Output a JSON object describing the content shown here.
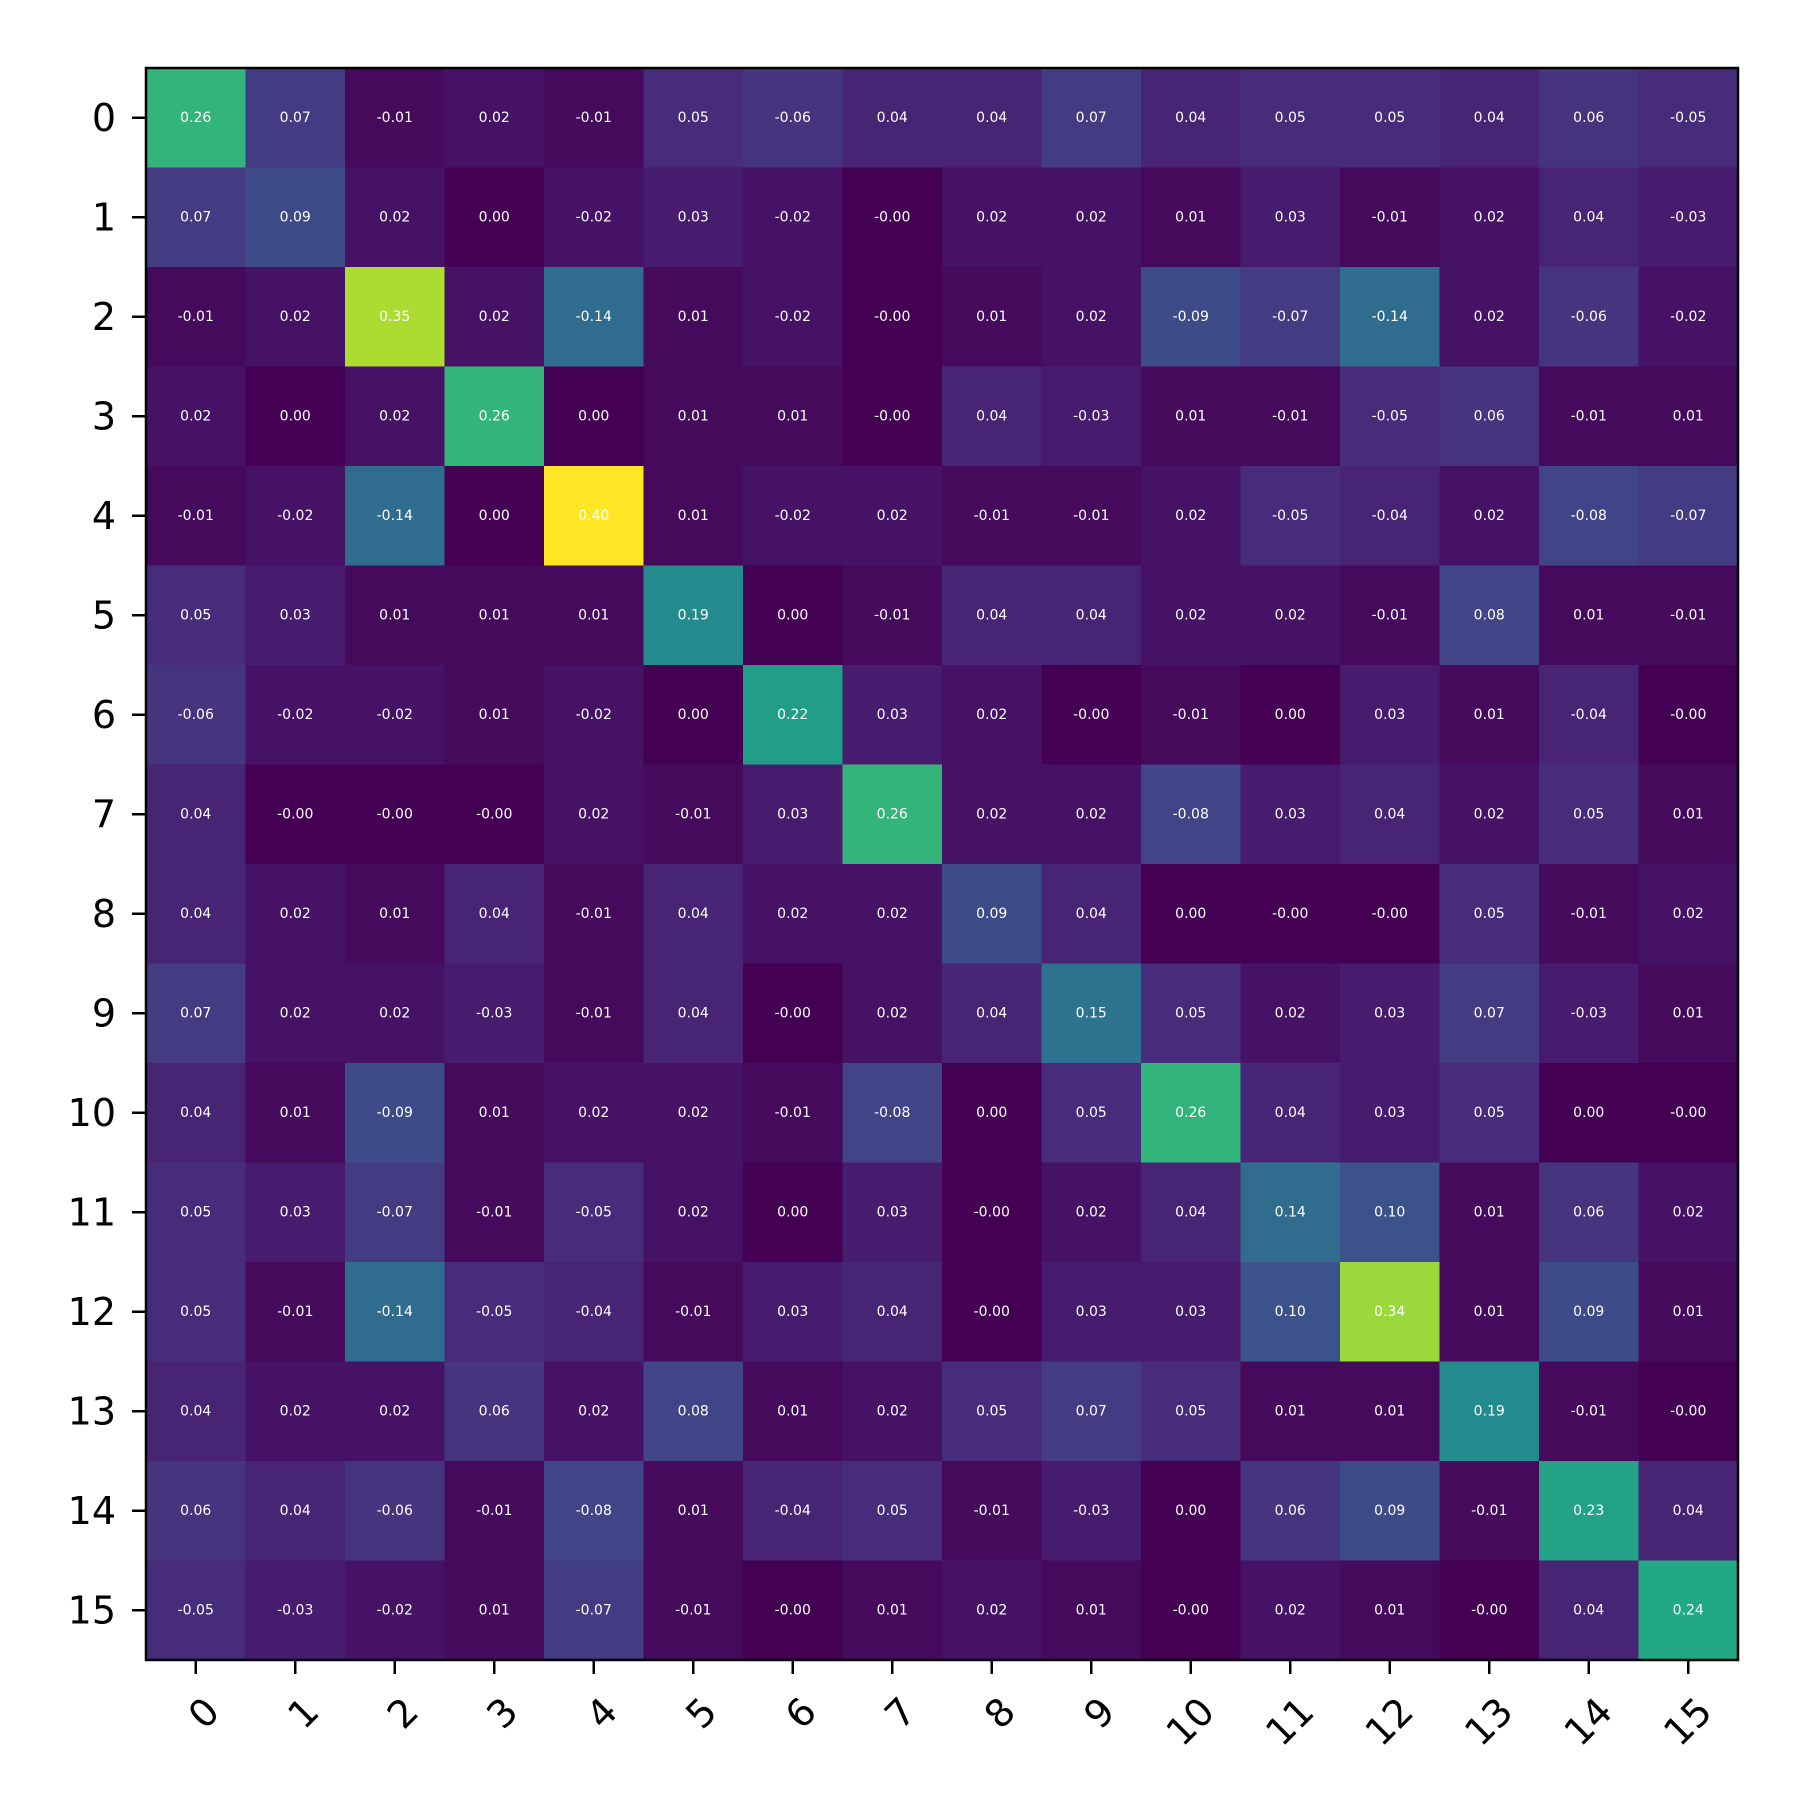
{
  "chart_data": {
    "type": "heatmap",
    "title": "",
    "xlabel": "",
    "ylabel": "",
    "colormap": "viridis",
    "value_format": "2-decimal",
    "x_categories": [
      "0",
      "1",
      "2",
      "3",
      "4",
      "5",
      "6",
      "7",
      "8",
      "9",
      "10",
      "11",
      "12",
      "13",
      "14",
      "15"
    ],
    "y_categories": [
      "0",
      "1",
      "2",
      "3",
      "4",
      "5",
      "6",
      "7",
      "8",
      "9",
      "10",
      "11",
      "12",
      "13",
      "14",
      "15"
    ],
    "x_tick_rotation_deg": -45,
    "grid": false,
    "colorbar": false,
    "value_range": [
      -0.14,
      0.4
    ],
    "values": [
      [
        0.26,
        0.07,
        -0.01,
        0.02,
        -0.01,
        0.05,
        -0.06,
        0.04,
        0.04,
        0.07,
        0.04,
        0.05,
        0.05,
        0.04,
        0.06,
        -0.05
      ],
      [
        0.07,
        0.09,
        0.02,
        0.0,
        -0.02,
        0.03,
        -0.02,
        -0.0,
        0.02,
        0.02,
        0.01,
        0.03,
        -0.01,
        0.02,
        0.04,
        -0.03
      ],
      [
        -0.01,
        0.02,
        0.35,
        0.02,
        -0.14,
        0.01,
        -0.02,
        -0.0,
        0.01,
        0.02,
        -0.09,
        -0.07,
        -0.14,
        0.02,
        -0.06,
        -0.02
      ],
      [
        0.02,
        0.0,
        0.02,
        0.26,
        0.0,
        0.01,
        0.01,
        -0.0,
        0.04,
        -0.03,
        0.01,
        -0.01,
        -0.05,
        0.06,
        -0.01,
        0.01
      ],
      [
        -0.01,
        -0.02,
        -0.14,
        0.0,
        0.4,
        0.01,
        -0.02,
        0.02,
        -0.01,
        -0.01,
        0.02,
        -0.05,
        -0.04,
        0.02,
        -0.08,
        -0.07
      ],
      [
        0.05,
        0.03,
        0.01,
        0.01,
        0.01,
        0.19,
        0.0,
        -0.01,
        0.04,
        0.04,
        0.02,
        0.02,
        -0.01,
        0.08,
        0.01,
        -0.01
      ],
      [
        -0.06,
        -0.02,
        -0.02,
        0.01,
        -0.02,
        0.0,
        0.22,
        0.03,
        0.02,
        -0.0,
        -0.01,
        0.0,
        0.03,
        0.01,
        -0.04,
        -0.0
      ],
      [
        0.04,
        -0.0,
        -0.0,
        -0.0,
        0.02,
        -0.01,
        0.03,
        0.26,
        0.02,
        0.02,
        -0.08,
        0.03,
        0.04,
        0.02,
        0.05,
        0.01
      ],
      [
        0.04,
        0.02,
        0.01,
        0.04,
        -0.01,
        0.04,
        0.02,
        0.02,
        0.09,
        0.04,
        0.0,
        -0.0,
        -0.0,
        0.05,
        -0.01,
        0.02
      ],
      [
        0.07,
        0.02,
        0.02,
        -0.03,
        -0.01,
        0.04,
        -0.0,
        0.02,
        0.04,
        0.15,
        0.05,
        0.02,
        0.03,
        0.07,
        -0.03,
        0.01
      ],
      [
        0.04,
        0.01,
        -0.09,
        0.01,
        0.02,
        0.02,
        -0.01,
        -0.08,
        0.0,
        0.05,
        0.26,
        0.04,
        0.03,
        0.05,
        0.0,
        -0.0
      ],
      [
        0.05,
        0.03,
        -0.07,
        -0.01,
        -0.05,
        0.02,
        0.0,
        0.03,
        -0.0,
        0.02,
        0.04,
        0.14,
        0.1,
        0.01,
        0.06,
        0.02
      ],
      [
        0.05,
        -0.01,
        -0.14,
        -0.05,
        -0.04,
        -0.01,
        0.03,
        0.04,
        -0.0,
        0.03,
        0.03,
        0.1,
        0.34,
        0.01,
        0.09,
        0.01
      ],
      [
        0.04,
        0.02,
        0.02,
        0.06,
        0.02,
        0.08,
        0.01,
        0.02,
        0.05,
        0.07,
        0.05,
        0.01,
        0.01,
        0.19,
        -0.01,
        -0.0
      ],
      [
        0.06,
        0.04,
        -0.06,
        -0.01,
        -0.08,
        0.01,
        -0.04,
        0.05,
        -0.01,
        -0.03,
        0.0,
        0.06,
        0.09,
        -0.01,
        0.23,
        0.04
      ],
      [
        -0.05,
        -0.03,
        -0.02,
        0.01,
        -0.07,
        -0.01,
        -0.0,
        0.01,
        0.02,
        0.01,
        -0.0,
        0.02,
        0.01,
        -0.0,
        0.04,
        0.24
      ]
    ],
    "cell_labels": [
      [
        "0.26",
        "0.07",
        "-0.01",
        "0.02",
        "-0.01",
        "0.05",
        "-0.06",
        "0.04",
        "0.04",
        "0.07",
        "0.04",
        "0.05",
        "0.05",
        "0.04",
        "0.06",
        "-0.05"
      ],
      [
        "0.07",
        "0.09",
        "0.02",
        "0.00",
        "-0.02",
        "0.03",
        "-0.02",
        "-0.00",
        "0.02",
        "0.02",
        "0.01",
        "0.03",
        "-0.01",
        "0.02",
        "0.04",
        "-0.03"
      ],
      [
        "-0.01",
        "0.02",
        "0.35",
        "0.02",
        "-0.14",
        "0.01",
        "-0.02",
        "-0.00",
        "0.01",
        "0.02",
        "-0.09",
        "-0.07",
        "-0.14",
        "0.02",
        "-0.06",
        "-0.02"
      ],
      [
        "0.02",
        "0.00",
        "0.02",
        "0.26",
        "0.00",
        "0.01",
        "0.01",
        "-0.00",
        "0.04",
        "-0.03",
        "0.01",
        "-0.01",
        "-0.05",
        "0.06",
        "-0.01",
        "0.01"
      ],
      [
        "-0.01",
        "-0.02",
        "-0.14",
        "0.00",
        "0.40",
        "0.01",
        "-0.02",
        "0.02",
        "-0.01",
        "-0.01",
        "0.02",
        "-0.05",
        "-0.04",
        "0.02",
        "-0.08",
        "-0.07"
      ],
      [
        "0.05",
        "0.03",
        "0.01",
        "0.01",
        "0.01",
        "0.19",
        "0.00",
        "-0.01",
        "0.04",
        "0.04",
        "0.02",
        "0.02",
        "-0.01",
        "0.08",
        "0.01",
        "-0.01"
      ],
      [
        "-0.06",
        "-0.02",
        "-0.02",
        "0.01",
        "-0.02",
        "0.00",
        "0.22",
        "0.03",
        "0.02",
        "-0.00",
        "-0.01",
        "0.00",
        "0.03",
        "0.01",
        "-0.04",
        "-0.00"
      ],
      [
        "0.04",
        "-0.00",
        "-0.00",
        "-0.00",
        "0.02",
        "-0.01",
        "0.03",
        "0.26",
        "0.02",
        "0.02",
        "-0.08",
        "0.03",
        "0.04",
        "0.02",
        "0.05",
        "0.01"
      ],
      [
        "0.04",
        "0.02",
        "0.01",
        "0.04",
        "-0.01",
        "0.04",
        "0.02",
        "0.02",
        "0.09",
        "0.04",
        "0.00",
        "-0.00",
        "-0.00",
        "0.05",
        "-0.01",
        "0.02"
      ],
      [
        "0.07",
        "0.02",
        "0.02",
        "-0.03",
        "-0.01",
        "0.04",
        "-0.00",
        "0.02",
        "0.04",
        "0.15",
        "0.05",
        "0.02",
        "0.03",
        "0.07",
        "-0.03",
        "0.01"
      ],
      [
        "0.04",
        "0.01",
        "-0.09",
        "0.01",
        "0.02",
        "0.02",
        "-0.01",
        "-0.08",
        "0.00",
        "0.05",
        "0.26",
        "0.04",
        "0.03",
        "0.05",
        "0.00",
        "-0.00"
      ],
      [
        "0.05",
        "0.03",
        "-0.07",
        "-0.01",
        "-0.05",
        "0.02",
        "0.00",
        "0.03",
        "-0.00",
        "0.02",
        "0.04",
        "0.14",
        "0.10",
        "0.01",
        "0.06",
        "0.02"
      ],
      [
        "0.05",
        "-0.01",
        "-0.14",
        "-0.05",
        "-0.04",
        "-0.01",
        "0.03",
        "0.04",
        "-0.00",
        "0.03",
        "0.03",
        "0.10",
        "0.34",
        "0.01",
        "0.09",
        "0.01"
      ],
      [
        "0.04",
        "0.02",
        "0.02",
        "0.06",
        "0.02",
        "0.08",
        "0.01",
        "0.02",
        "0.05",
        "0.07",
        "0.05",
        "0.01",
        "0.01",
        "0.19",
        "-0.01",
        "-0.00"
      ],
      [
        "0.06",
        "0.04",
        "-0.06",
        "-0.01",
        "-0.08",
        "0.01",
        "-0.04",
        "0.05",
        "-0.01",
        "-0.03",
        "0.00",
        "0.06",
        "0.09",
        "-0.01",
        "0.23",
        "0.04"
      ],
      [
        "-0.05",
        "-0.03",
        "-0.02",
        "0.01",
        "-0.07",
        "-0.01",
        "-0.00",
        "0.01",
        "0.02",
        "0.01",
        "-0.00",
        "0.02",
        "0.01",
        "-0.00",
        "0.04",
        "0.24"
      ]
    ]
  }
}
